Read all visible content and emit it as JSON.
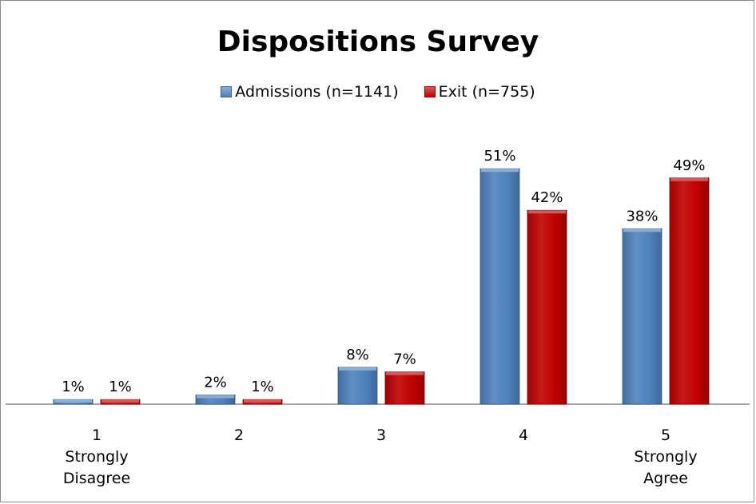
{
  "chart_data": {
    "type": "bar",
    "title": "Dispositions Survey",
    "categories": [
      {
        "number": "1",
        "sublabel": [
          "Strongly",
          "Disagree"
        ]
      },
      {
        "number": "2",
        "sublabel": []
      },
      {
        "number": "3",
        "sublabel": []
      },
      {
        "number": "4",
        "sublabel": []
      },
      {
        "number": "5",
        "sublabel": [
          "Strongly",
          "Agree"
        ]
      }
    ],
    "series": [
      {
        "name": "Admissions (n=1141)",
        "color": "#4f81bd",
        "values": [
          1,
          2,
          8,
          51,
          38
        ]
      },
      {
        "name": "Exit (n=755)",
        "color": "#c00000",
        "values": [
          1,
          1,
          7,
          42,
          49
        ]
      }
    ],
    "value_suffix": "%",
    "ylim": [
      0,
      60
    ],
    "grid": false,
    "legend_position": "top",
    "xlabel": "",
    "ylabel": ""
  }
}
